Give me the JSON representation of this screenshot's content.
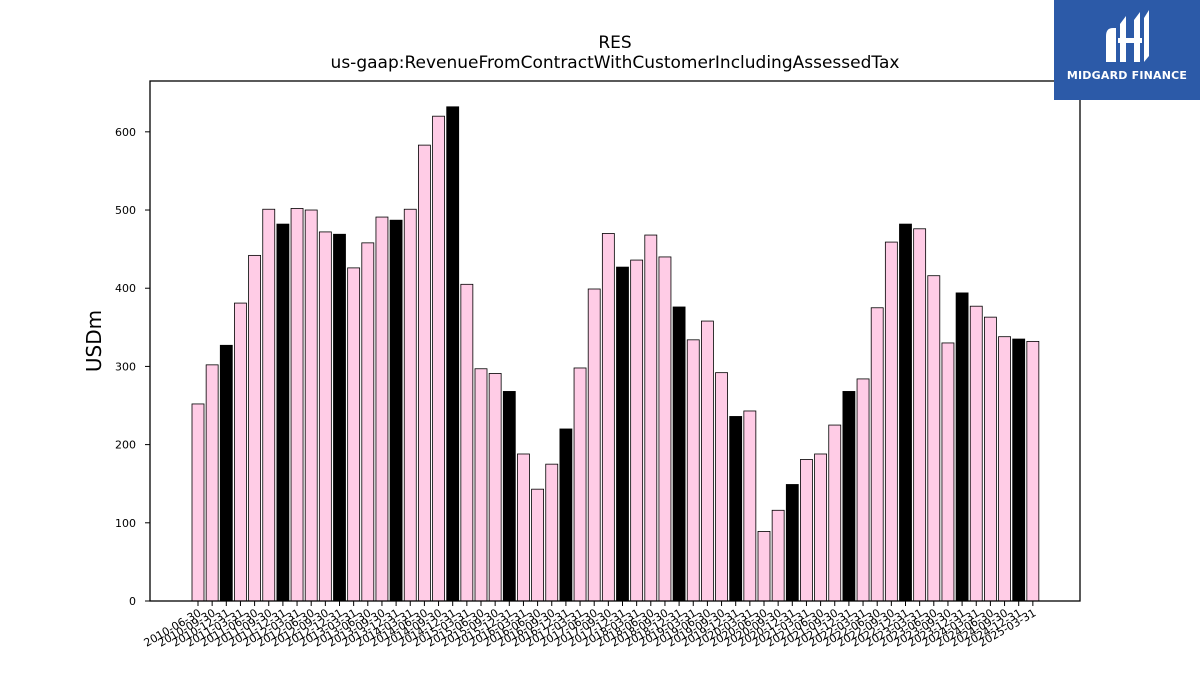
{
  "chart_data": {
    "type": "bar",
    "title": "RES",
    "subtitle": "us-gaap:RevenueFromContractWithCustomerIncludingAssessedTax",
    "ylabel": "USDm",
    "xlabel": "",
    "ylim": [
      0,
      665
    ],
    "yticks": [
      0,
      100,
      200,
      300,
      400,
      500,
      600
    ],
    "grid": false,
    "categories": [
      "2010-06-30",
      "2010-09-30",
      "2010-12-31",
      "2011-03-31",
      "2011-06-30",
      "2011-09-30",
      "2011-12-31",
      "2012-03-31",
      "2012-06-30",
      "2012-09-30",
      "2012-12-31",
      "2013-03-31",
      "2013-06-30",
      "2013-09-30",
      "2013-12-31",
      "2014-03-31",
      "2014-06-30",
      "2014-09-30",
      "2014-12-31",
      "2015-03-31",
      "2015-06-30",
      "2015-09-30",
      "2015-12-31",
      "2016-03-31",
      "2016-06-30",
      "2016-09-30",
      "2016-12-31",
      "2017-03-31",
      "2017-06-30",
      "2017-09-30",
      "2017-12-31",
      "2018-03-31",
      "2018-06-30",
      "2018-09-30",
      "2018-12-31",
      "2019-03-31",
      "2019-06-30",
      "2019-09-30",
      "2019-12-31",
      "2020-03-31",
      "2020-06-30",
      "2020-09-30",
      "2020-12-31",
      "2021-03-31",
      "2021-06-30",
      "2021-09-30",
      "2021-12-31",
      "2022-03-31",
      "2022-06-30",
      "2022-09-30",
      "2022-12-31",
      "2023-03-31",
      "2023-06-30",
      "2023-09-30",
      "2023-12-31",
      "2024-03-31",
      "2024-06-30",
      "2024-09-30",
      "2024-12-31",
      "2025-03-31"
    ],
    "values": [
      252,
      302,
      327,
      381,
      442,
      501,
      482,
      502,
      500,
      472,
      469,
      426,
      458,
      491,
      487,
      501,
      583,
      620,
      632,
      405,
      297,
      291,
      268,
      188,
      143,
      175,
      220,
      298,
      399,
      470,
      427,
      436,
      468,
      440,
      376,
      334,
      358,
      292,
      236,
      243,
      89,
      116,
      149,
      181,
      188,
      225,
      268,
      284,
      375,
      459,
      482,
      476,
      416,
      330,
      394,
      377,
      363,
      338,
      335,
      332
    ],
    "highlight_suffix": "-12-31",
    "colors": {
      "default_fill": "#ffcce6",
      "highlight_fill": "#000000",
      "edge": "#000000"
    }
  },
  "logo": {
    "text": "MIDGARD FINANCE",
    "bg_color": "#2c5aa8"
  }
}
